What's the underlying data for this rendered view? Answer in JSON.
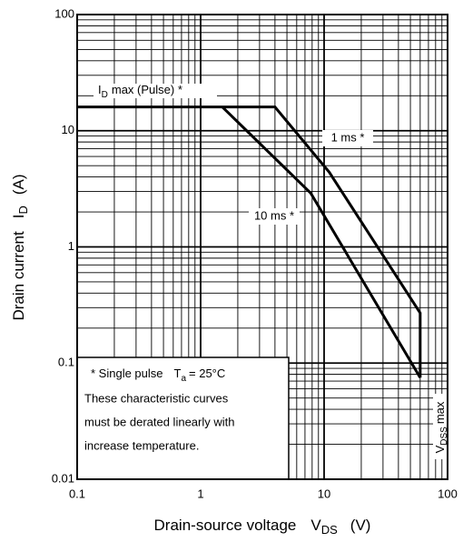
{
  "chart_data": {
    "type": "line",
    "x_label": {
      "main": "Drain-source voltage",
      "symbol": "V",
      "sub": "DS",
      "unit": "(V)"
    },
    "y_label": {
      "main": "Drain current",
      "symbol": "I",
      "sub": "D",
      "unit": "(A)"
    },
    "xscale": "log",
    "yscale": "log",
    "xlim": [
      0.1,
      100
    ],
    "ylim": [
      0.01,
      100
    ],
    "xticks": [
      0.1,
      1,
      10,
      100
    ],
    "yticks": [
      0.01,
      0.1,
      1,
      10,
      100
    ],
    "xminor": [
      0.2,
      0.3,
      0.4,
      0.5,
      0.6,
      0.7,
      0.8,
      0.9,
      2,
      3,
      4,
      5,
      6,
      7,
      8,
      9,
      20,
      30,
      40,
      50,
      60,
      70,
      80,
      90
    ],
    "yminor": [
      0.02,
      0.03,
      0.04,
      0.05,
      0.06,
      0.07,
      0.08,
      0.09,
      0.2,
      0.3,
      0.4,
      0.5,
      0.6,
      0.7,
      0.8,
      0.9,
      2,
      3,
      4,
      5,
      6,
      7,
      8,
      9,
      20,
      30,
      40,
      50,
      60,
      70,
      80,
      90
    ],
    "series": [
      {
        "name": "1 ms *",
        "color": "#000000",
        "x": [
          0.1,
          4,
          11,
          60,
          60
        ],
        "values": [
          16,
          16,
          4.4,
          0.27,
          0.075
        ]
      },
      {
        "name": "10 ms *",
        "color": "#000000",
        "x": [
          1.5,
          7.8,
          60
        ],
        "values": [
          16,
          2.9,
          0.075
        ]
      }
    ],
    "annotations": {
      "id_max": {
        "symbol": "I",
        "sub": "D",
        "text": "max (Pulse) *"
      },
      "vdss": {
        "symbol": "V",
        "sub": "DSS",
        "text": "max"
      },
      "note": {
        "line1": "* Single pulse",
        "t_symbol": "T",
        "t_sub": "a",
        "t_text": "= 25°C",
        "lines": [
          "These characteristic curves",
          "must be derated linearly with",
          "increase temperature."
        ]
      }
    }
  }
}
